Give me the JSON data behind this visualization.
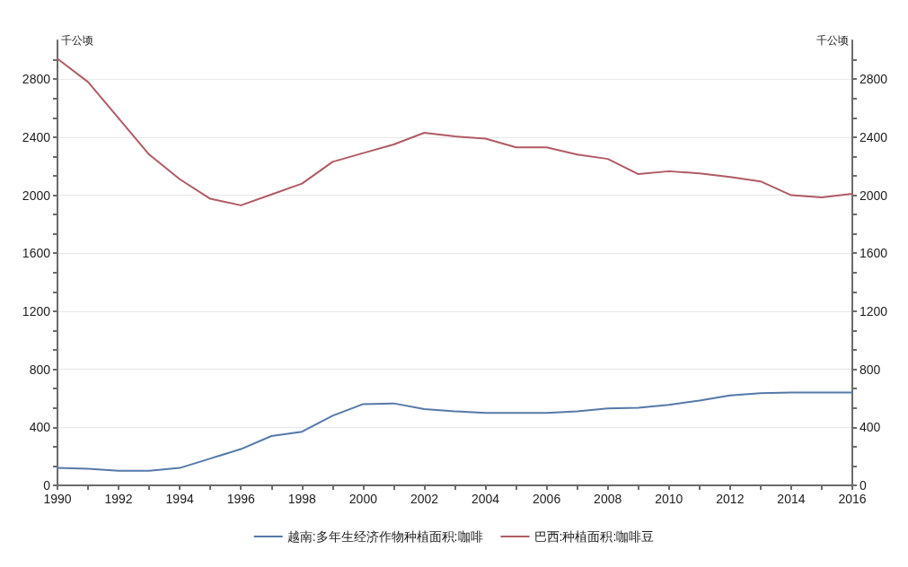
{
  "chart_data": {
    "type": "line",
    "x": [
      1990,
      1991,
      1992,
      1993,
      1994,
      1995,
      1996,
      1997,
      1998,
      1999,
      2000,
      2001,
      2002,
      2003,
      2004,
      2005,
      2006,
      2007,
      2008,
      2009,
      2010,
      2011,
      2012,
      2013,
      2014,
      2015,
      2016
    ],
    "series": [
      {
        "name": "越南:多年生经济作物种植面积:咖啡",
        "color": "#5479a8",
        "values": [
          120,
          115,
          100,
          100,
          120,
          185,
          250,
          340,
          370,
          480,
          560,
          565,
          525,
          510,
          500,
          500,
          500,
          510,
          530,
          535,
          555,
          585,
          620,
          635,
          640,
          640,
          640
        ]
      },
      {
        "name": "巴西:种植面积:咖啡豆",
        "color": "#b05a64",
        "values": [
          2940,
          2780,
          2530,
          2280,
          2110,
          1975,
          1930,
          2005,
          2080,
          2230,
          2290,
          2350,
          2430,
          2405,
          2390,
          2330,
          2330,
          2280,
          2250,
          2145,
          2165,
          2150,
          2125,
          2095,
          2000,
          1985,
          2010
        ]
      }
    ],
    "xlim": [
      1990,
      2016
    ],
    "xticks": [
      1990,
      {
        "value": 1991,
        "label": null
      },
      1992,
      {
        "value": 1993,
        "label": null
      },
      1994,
      {
        "value": 1995,
        "label": null
      },
      1996,
      {
        "value": 1997,
        "label": null
      },
      1998,
      {
        "value": 1999,
        "label": null
      },
      2000,
      {
        "value": 2001,
        "label": null
      },
      2002,
      {
        "value": 2003,
        "label": null
      },
      2004,
      {
        "value": 2005,
        "label": null
      },
      2006,
      {
        "value": 2007,
        "label": null
      },
      2008,
      {
        "value": 2009,
        "label": null
      },
      2010,
      {
        "value": 2011,
        "label": null
      },
      2012,
      {
        "value": 2013,
        "label": null
      },
      2014,
      {
        "value": 2015,
        "label": null
      },
      2016
    ],
    "ylim": [
      0,
      3067
    ],
    "yticks": [
      0,
      {
        "value": 133.3,
        "label": null
      },
      {
        "value": 266.7,
        "label": null
      },
      400,
      {
        "value": 533.3,
        "label": null
      },
      {
        "value": 666.7,
        "label": null
      },
      800,
      {
        "value": 933.3,
        "label": null
      },
      {
        "value": 1066.7,
        "label": null
      },
      1200,
      {
        "value": 1333.3,
        "label": null
      },
      {
        "value": 1466.7,
        "label": null
      },
      1600,
      {
        "value": 1733.3,
        "label": null
      },
      {
        "value": 1866.7,
        "label": null
      },
      2000,
      {
        "value": 2133.3,
        "label": null
      },
      {
        "value": 2266.7,
        "label": null
      },
      2400,
      {
        "value": 2533.3,
        "label": null
      },
      {
        "value": 2666.7,
        "label": null
      },
      2800,
      {
        "value": 2933.3,
        "label": null
      }
    ],
    "y2lim": [
      0,
      3067
    ],
    "y2ticks": [
      0,
      {
        "value": 133.3,
        "label": null
      },
      {
        "value": 266.7,
        "label": null
      },
      400,
      {
        "value": 533.3,
        "label": null
      },
      {
        "value": 666.7,
        "label": null
      },
      800,
      {
        "value": 933.3,
        "label": null
      },
      {
        "value": 1066.7,
        "label": null
      },
      1200,
      {
        "value": 1333.3,
        "label": null
      },
      {
        "value": 1466.7,
        "label": null
      },
      1600,
      {
        "value": 1733.3,
        "label": null
      },
      {
        "value": 1866.7,
        "label": null
      },
      2000,
      {
        "value": 2133.3,
        "label": null
      },
      {
        "value": 2266.7,
        "label": null
      },
      2400,
      {
        "value": 2533.3,
        "label": null
      },
      {
        "value": 2666.7,
        "label": null
      },
      2800,
      {
        "value": 2933.3,
        "label": null
      }
    ],
    "ylabel": "千公顷",
    "y2label": "千公顷",
    "grid": "y",
    "legend": "bottom",
    "line_style": "solid"
  }
}
